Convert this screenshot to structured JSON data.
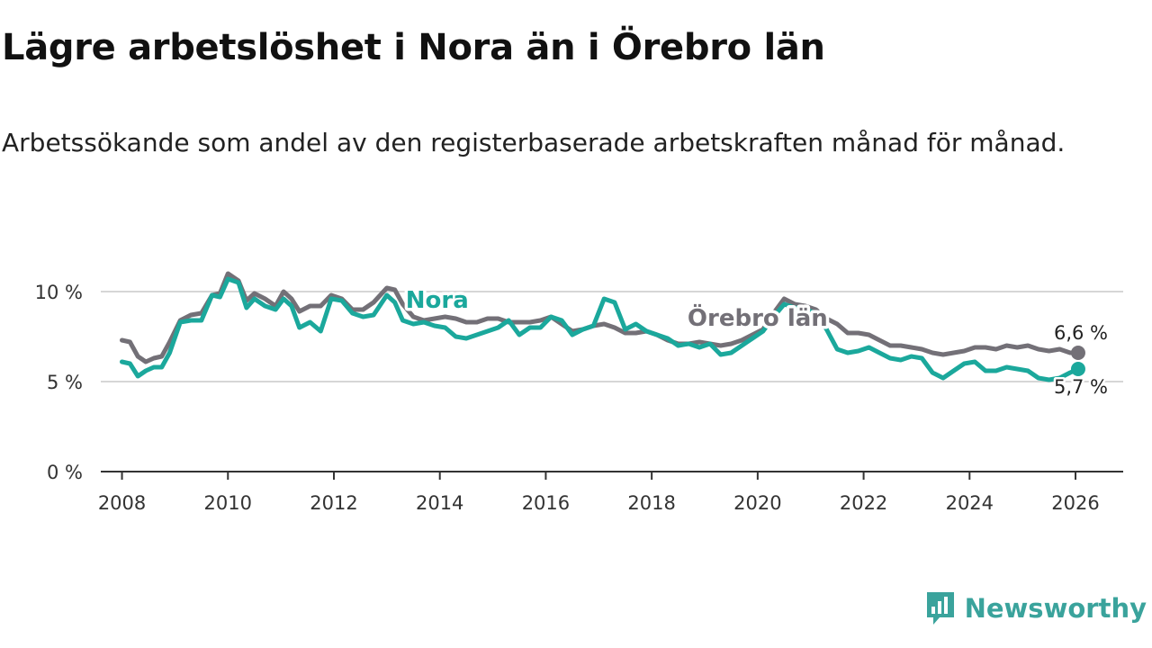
{
  "header": {
    "title": "Lägre arbetslöshet i Nora än i Örebro län",
    "subtitle": "Arbetssökande som andel av den registerbaserade arbetskraften månad för månad."
  },
  "brand": {
    "name": "Newsworthy",
    "icon": "bar-chart-speech-bubble-icon",
    "color": "#3aa39c"
  },
  "chart_data": {
    "type": "line",
    "title": "Lägre arbetslöshet i Nora än i Örebro län",
    "xlabel": "",
    "ylabel": "",
    "xlim": [
      2007.6,
      2026.9
    ],
    "ylim": [
      0,
      12
    ],
    "x_ticks": [
      2008,
      2010,
      2012,
      2014,
      2016,
      2018,
      2020,
      2022,
      2024,
      2026
    ],
    "x_tick_labels": [
      "2008",
      "2010",
      "2012",
      "2014",
      "2016",
      "2018",
      "2020",
      "2022",
      "2024",
      "2026"
    ],
    "y_ticks": [
      0,
      5,
      10
    ],
    "y_tick_labels": [
      "0 %",
      "5 %",
      "10 %"
    ],
    "grid": "horizontal",
    "series": [
      {
        "name": "Örebro län",
        "color": "#737077",
        "end_label": "6,6 %",
        "points": [
          [
            2008.0,
            7.3
          ],
          [
            2008.15,
            7.2
          ],
          [
            2008.3,
            6.4
          ],
          [
            2008.45,
            6.1
          ],
          [
            2008.6,
            6.3
          ],
          [
            2008.75,
            6.4
          ],
          [
            2008.9,
            7.2
          ],
          [
            2009.1,
            8.4
          ],
          [
            2009.3,
            8.7
          ],
          [
            2009.5,
            8.8
          ],
          [
            2009.7,
            9.8
          ],
          [
            2009.85,
            9.9
          ],
          [
            2010.0,
            11.0
          ],
          [
            2010.2,
            10.6
          ],
          [
            2010.35,
            9.5
          ],
          [
            2010.5,
            9.9
          ],
          [
            2010.7,
            9.6
          ],
          [
            2010.9,
            9.2
          ],
          [
            2011.05,
            10.0
          ],
          [
            2011.2,
            9.6
          ],
          [
            2011.35,
            8.9
          ],
          [
            2011.55,
            9.2
          ],
          [
            2011.75,
            9.2
          ],
          [
            2011.95,
            9.8
          ],
          [
            2012.15,
            9.6
          ],
          [
            2012.35,
            9.0
          ],
          [
            2012.55,
            9.0
          ],
          [
            2012.75,
            9.4
          ],
          [
            2013.0,
            10.2
          ],
          [
            2013.15,
            10.1
          ],
          [
            2013.3,
            9.3
          ],
          [
            2013.5,
            8.6
          ],
          [
            2013.7,
            8.4
          ],
          [
            2013.9,
            8.5
          ],
          [
            2014.1,
            8.6
          ],
          [
            2014.3,
            8.5
          ],
          [
            2014.5,
            8.3
          ],
          [
            2014.7,
            8.3
          ],
          [
            2014.9,
            8.5
          ],
          [
            2015.1,
            8.5
          ],
          [
            2015.3,
            8.3
          ],
          [
            2015.5,
            8.3
          ],
          [
            2015.7,
            8.3
          ],
          [
            2015.9,
            8.4
          ],
          [
            2016.1,
            8.6
          ],
          [
            2016.3,
            8.2
          ],
          [
            2016.5,
            7.8
          ],
          [
            2016.7,
            7.9
          ],
          [
            2016.9,
            8.1
          ],
          [
            2017.1,
            8.2
          ],
          [
            2017.3,
            8.0
          ],
          [
            2017.5,
            7.7
          ],
          [
            2017.7,
            7.7
          ],
          [
            2017.9,
            7.8
          ],
          [
            2018.1,
            7.6
          ],
          [
            2018.3,
            7.3
          ],
          [
            2018.5,
            7.1
          ],
          [
            2018.7,
            7.1
          ],
          [
            2018.9,
            7.2
          ],
          [
            2019.1,
            7.1
          ],
          [
            2019.3,
            7.0
          ],
          [
            2019.5,
            7.1
          ],
          [
            2019.7,
            7.3
          ],
          [
            2019.9,
            7.6
          ],
          [
            2020.1,
            7.9
          ],
          [
            2020.3,
            8.8
          ],
          [
            2020.5,
            9.6
          ],
          [
            2020.7,
            9.3
          ],
          [
            2020.9,
            9.2
          ],
          [
            2021.1,
            9.0
          ],
          [
            2021.3,
            8.5
          ],
          [
            2021.5,
            8.2
          ],
          [
            2021.7,
            7.7
          ],
          [
            2021.9,
            7.7
          ],
          [
            2022.1,
            7.6
          ],
          [
            2022.3,
            7.3
          ],
          [
            2022.5,
            7.0
          ],
          [
            2022.7,
            7.0
          ],
          [
            2022.9,
            6.9
          ],
          [
            2023.1,
            6.8
          ],
          [
            2023.3,
            6.6
          ],
          [
            2023.5,
            6.5
          ],
          [
            2023.7,
            6.6
          ],
          [
            2023.9,
            6.7
          ],
          [
            2024.1,
            6.9
          ],
          [
            2024.3,
            6.9
          ],
          [
            2024.5,
            6.8
          ],
          [
            2024.7,
            7.0
          ],
          [
            2024.9,
            6.9
          ],
          [
            2025.1,
            7.0
          ],
          [
            2025.3,
            6.8
          ],
          [
            2025.5,
            6.7
          ],
          [
            2025.7,
            6.8
          ],
          [
            2025.9,
            6.6
          ],
          [
            2026.05,
            6.6
          ]
        ]
      },
      {
        "name": "Nora",
        "color": "#1ba89c",
        "end_label": "5,7 %",
        "points": [
          [
            2008.0,
            6.1
          ],
          [
            2008.15,
            6.0
          ],
          [
            2008.3,
            5.3
          ],
          [
            2008.45,
            5.6
          ],
          [
            2008.6,
            5.8
          ],
          [
            2008.75,
            5.8
          ],
          [
            2008.9,
            6.6
          ],
          [
            2009.1,
            8.3
          ],
          [
            2009.3,
            8.4
          ],
          [
            2009.5,
            8.4
          ],
          [
            2009.7,
            9.8
          ],
          [
            2009.85,
            9.7
          ],
          [
            2010.0,
            10.7
          ],
          [
            2010.2,
            10.5
          ],
          [
            2010.35,
            9.1
          ],
          [
            2010.5,
            9.6
          ],
          [
            2010.7,
            9.2
          ],
          [
            2010.9,
            9.0
          ],
          [
            2011.05,
            9.6
          ],
          [
            2011.2,
            9.2
          ],
          [
            2011.35,
            8.0
          ],
          [
            2011.55,
            8.3
          ],
          [
            2011.75,
            7.8
          ],
          [
            2011.95,
            9.6
          ],
          [
            2012.15,
            9.5
          ],
          [
            2012.35,
            8.8
          ],
          [
            2012.55,
            8.6
          ],
          [
            2012.75,
            8.7
          ],
          [
            2013.0,
            9.8
          ],
          [
            2013.15,
            9.4
          ],
          [
            2013.3,
            8.4
          ],
          [
            2013.5,
            8.2
          ],
          [
            2013.7,
            8.3
          ],
          [
            2013.9,
            8.1
          ],
          [
            2014.1,
            8.0
          ],
          [
            2014.3,
            7.5
          ],
          [
            2014.5,
            7.4
          ],
          [
            2014.7,
            7.6
          ],
          [
            2014.9,
            7.8
          ],
          [
            2015.1,
            8.0
          ],
          [
            2015.3,
            8.4
          ],
          [
            2015.5,
            7.6
          ],
          [
            2015.7,
            8.0
          ],
          [
            2015.9,
            8.0
          ],
          [
            2016.1,
            8.6
          ],
          [
            2016.3,
            8.4
          ],
          [
            2016.5,
            7.6
          ],
          [
            2016.7,
            7.9
          ],
          [
            2016.9,
            8.1
          ],
          [
            2017.1,
            9.6
          ],
          [
            2017.3,
            9.4
          ],
          [
            2017.5,
            7.9
          ],
          [
            2017.7,
            8.2
          ],
          [
            2017.9,
            7.8
          ],
          [
            2018.1,
            7.6
          ],
          [
            2018.3,
            7.4
          ],
          [
            2018.5,
            7.0
          ],
          [
            2018.7,
            7.1
          ],
          [
            2018.9,
            6.9
          ],
          [
            2019.1,
            7.1
          ],
          [
            2019.3,
            6.5
          ],
          [
            2019.5,
            6.6
          ],
          [
            2019.7,
            7.0
          ],
          [
            2019.9,
            7.4
          ],
          [
            2020.1,
            7.8
          ],
          [
            2020.3,
            8.6
          ],
          [
            2020.5,
            9.3
          ],
          [
            2020.7,
            9.1
          ],
          [
            2020.9,
            9.0
          ],
          [
            2021.1,
            8.8
          ],
          [
            2021.3,
            7.9
          ],
          [
            2021.5,
            6.8
          ],
          [
            2021.7,
            6.6
          ],
          [
            2021.9,
            6.7
          ],
          [
            2022.1,
            6.9
          ],
          [
            2022.3,
            6.6
          ],
          [
            2022.5,
            6.3
          ],
          [
            2022.7,
            6.2
          ],
          [
            2022.9,
            6.4
          ],
          [
            2023.1,
            6.3
          ],
          [
            2023.3,
            5.5
          ],
          [
            2023.5,
            5.2
          ],
          [
            2023.7,
            5.6
          ],
          [
            2023.9,
            6.0
          ],
          [
            2024.1,
            6.1
          ],
          [
            2024.3,
            5.6
          ],
          [
            2024.5,
            5.6
          ],
          [
            2024.7,
            5.8
          ],
          [
            2024.9,
            5.7
          ],
          [
            2025.1,
            5.6
          ],
          [
            2025.3,
            5.2
          ],
          [
            2025.5,
            5.1
          ],
          [
            2025.7,
            5.2
          ],
          [
            2025.9,
            5.5
          ],
          [
            2026.05,
            5.7
          ]
        ]
      }
    ]
  }
}
